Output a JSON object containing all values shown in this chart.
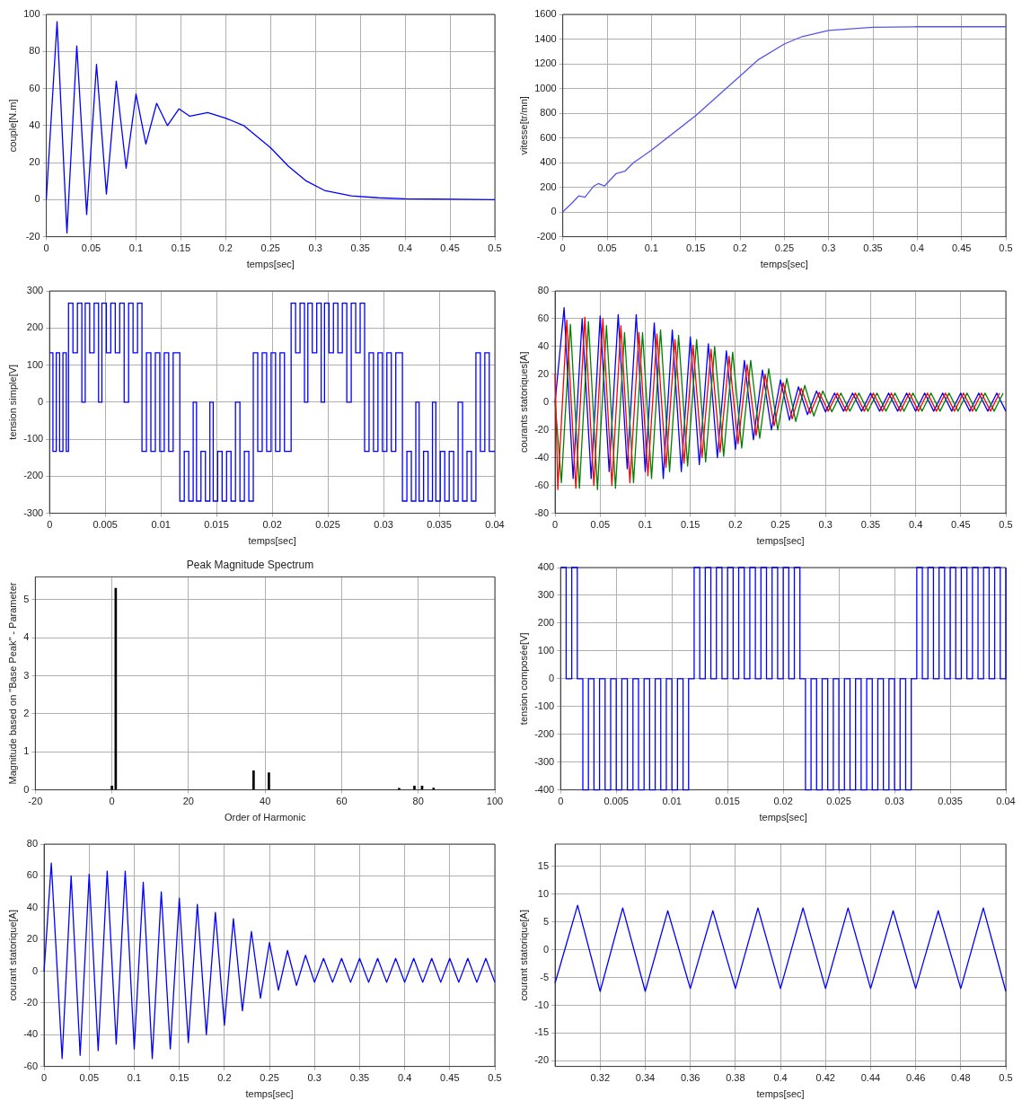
{
  "chart_data": [
    {
      "type": "line",
      "xlabel": "temps[sec]",
      "ylabel": "couple[N.m]",
      "xlim": [
        0,
        0.5
      ],
      "ylim": [
        -20,
        100
      ],
      "xticks": [
        0,
        0.05,
        0.1,
        0.15,
        0.2,
        0.25,
        0.3,
        0.35,
        0.4,
        0.45,
        0.5
      ],
      "yticks": [
        -20,
        0,
        20,
        40,
        60,
        80,
        100
      ],
      "grid": true,
      "color": "#0000ff",
      "x": [
        0,
        0.012,
        0.023,
        0.034,
        0.045,
        0.056,
        0.067,
        0.078,
        0.089,
        0.1,
        0.111,
        0.123,
        0.135,
        0.148,
        0.16,
        0.18,
        0.2,
        0.22,
        0.25,
        0.27,
        0.29,
        0.31,
        0.34,
        0.37,
        0.4,
        0.5
      ],
      "values": [
        0,
        96,
        -18,
        83,
        -8,
        73,
        3,
        64,
        17,
        57,
        30,
        52,
        40,
        49,
        45,
        47,
        44,
        40,
        28,
        18,
        10,
        5,
        2,
        1,
        0.5,
        0
      ]
    },
    {
      "type": "line",
      "xlabel": "temps[sec]",
      "ylabel": "vitesse[tr/mn]",
      "xlim": [
        0,
        0.5
      ],
      "ylim": [
        -200,
        1600
      ],
      "xticks": [
        0,
        0.05,
        0.1,
        0.15,
        0.2,
        0.25,
        0.3,
        0.35,
        0.4,
        0.45,
        0.5
      ],
      "yticks": [
        -200,
        0,
        200,
        400,
        600,
        800,
        1000,
        1200,
        1400,
        1600
      ],
      "grid": true,
      "color": "#5555ee",
      "x": [
        0,
        0.01,
        0.018,
        0.025,
        0.035,
        0.04,
        0.047,
        0.06,
        0.07,
        0.08,
        0.09,
        0.1,
        0.15,
        0.2,
        0.22,
        0.25,
        0.27,
        0.3,
        0.35,
        0.4,
        0.5
      ],
      "values": [
        0,
        70,
        130,
        120,
        210,
        230,
        210,
        310,
        330,
        400,
        450,
        500,
        780,
        1100,
        1230,
        1360,
        1420,
        1470,
        1495,
        1500,
        1500
      ]
    },
    {
      "type": "step",
      "xlabel": "temps[sec]",
      "ylabel": "tension simple[V]",
      "xlim": [
        0,
        0.04
      ],
      "ylim": [
        -300,
        300
      ],
      "xticks": [
        0,
        0.005,
        0.01,
        0.015,
        0.02,
        0.025,
        0.03,
        0.035,
        0.04
      ],
      "yticks": [
        -300,
        -200,
        -100,
        0,
        100,
        200,
        300
      ],
      "grid": true,
      "color": "#0000ff",
      "x": [
        0,
        0.0003,
        0.0006,
        0.0009,
        0.0012,
        0.0015,
        0.0017,
        0.0021,
        0.0025,
        0.0029,
        0.0032,
        0.0036,
        0.004,
        0.0044,
        0.0047,
        0.0051,
        0.0055,
        0.0059,
        0.0063,
        0.0067,
        0.0071,
        0.0075,
        0.0079,
        0.0083,
        0.0087,
        0.0091,
        0.0095,
        0.0099,
        0.0103,
        0.0107,
        0.0111,
        0.0117,
        0.0121,
        0.0125,
        0.0129,
        0.0132,
        0.0136,
        0.014,
        0.0144,
        0.0147,
        0.0151,
        0.0155,
        0.0159,
        0.0163,
        0.0167,
        0.0171,
        0.0175,
        0.0179,
        0.0183,
        0.0187,
        0.0191,
        0.0195,
        0.0199,
        0.0203,
        0.0207,
        0.0211,
        0.0217,
        0.0221,
        0.0225,
        0.0229,
        0.0232,
        0.0236,
        0.024,
        0.0244,
        0.0247,
        0.0251,
        0.0255,
        0.0259,
        0.0263,
        0.0267,
        0.0271,
        0.0275,
        0.0279,
        0.0283,
        0.0287,
        0.0291,
        0.0295,
        0.0299,
        0.0303,
        0.0307,
        0.0311,
        0.0317,
        0.0321,
        0.0325,
        0.0329,
        0.0332,
        0.0336,
        0.034,
        0.0344,
        0.0347,
        0.0351,
        0.0355,
        0.0359,
        0.0363,
        0.0367,
        0.0371,
        0.0375,
        0.0379,
        0.0383,
        0.0387,
        0.0391,
        0.0395,
        0.04
      ],
      "values": [
        133,
        -133,
        133,
        -133,
        133,
        -133,
        267,
        133,
        267,
        0,
        267,
        133,
        267,
        0,
        267,
        133,
        267,
        133,
        267,
        0,
        267,
        133,
        267,
        -133,
        133,
        -133,
        133,
        -133,
        133,
        -133,
        133,
        -267,
        -133,
        -267,
        0,
        -267,
        -133,
        -267,
        0,
        -267,
        -133,
        -267,
        -133,
        -267,
        0,
        -267,
        -133,
        -267,
        133,
        -133,
        133,
        -133,
        133,
        -133,
        133,
        -133,
        267,
        133,
        267,
        0,
        267,
        133,
        267,
        0,
        267,
        133,
        267,
        133,
        267,
        0,
        267,
        133,
        267,
        -133,
        133,
        -133,
        133,
        -133,
        133,
        -133,
        133,
        -267,
        -133,
        -267,
        0,
        -267,
        -133,
        -267,
        0,
        -267,
        -133,
        -267,
        -133,
        -267,
        0,
        -267,
        -133,
        -267,
        133,
        -133,
        133,
        -133,
        -133
      ]
    },
    {
      "type": "line",
      "xlabel": "temps[sec]",
      "ylabel": "courants statoriques[A]",
      "xlim": [
        0,
        0.5
      ],
      "ylim": [
        -80,
        80
      ],
      "xticks": [
        0,
        0.05,
        0.1,
        0.15,
        0.2,
        0.25,
        0.3,
        0.35,
        0.4,
        0.45,
        0.5
      ],
      "yticks": [
        -80,
        -60,
        -40,
        -20,
        0,
        20,
        40,
        60,
        80
      ],
      "grid": true,
      "series": [
        {
          "color": "#ff0000",
          "x": [
            0,
            0.003,
            0.013,
            0.023,
            0.033,
            0.043,
            0.053,
            0.063,
            0.073,
            0.083,
            0.093,
            0.103,
            0.113,
            0.123,
            0.133,
            0.143,
            0.153,
            0.163,
            0.173,
            0.183,
            0.193,
            0.203,
            0.213,
            0.223,
            0.233,
            0.243,
            0.253,
            0.263,
            0.273,
            0.283,
            0.293,
            0.303,
            0.313,
            0.323,
            0.333,
            0.343,
            0.353,
            0.363,
            0.373,
            0.383,
            0.393,
            0.403,
            0.413,
            0.423,
            0.433,
            0.443,
            0.453,
            0.463,
            0.473,
            0.483,
            0.493
          ],
          "values": [
            20,
            -63,
            59,
            -62,
            61,
            -60,
            60,
            -60,
            55,
            -58,
            50,
            -53,
            49,
            -47,
            45,
            -44,
            41,
            -40,
            38,
            -36,
            33,
            -30,
            27,
            -24,
            20,
            -17,
            14,
            -12,
            10,
            -8,
            7,
            -6.5,
            6.5,
            -6.5,
            6.5,
            -6.5,
            6.5,
            -6.5,
            6.5,
            -6.5,
            6.5,
            -6.5,
            6.5,
            -6.5,
            6.5,
            -6.5,
            6.5,
            -6.5,
            6.5,
            -6.5,
            6.5
          ]
        },
        {
          "color": "#008000",
          "x": [
            0,
            0.007,
            0.017,
            0.027,
            0.037,
            0.047,
            0.057,
            0.067,
            0.077,
            0.087,
            0.097,
            0.107,
            0.117,
            0.127,
            0.137,
            0.147,
            0.157,
            0.167,
            0.177,
            0.187,
            0.197,
            0.207,
            0.217,
            0.227,
            0.237,
            0.247,
            0.257,
            0.267,
            0.277,
            0.287,
            0.297,
            0.307,
            0.317,
            0.327,
            0.337,
            0.347,
            0.357,
            0.367,
            0.377,
            0.387,
            0.397,
            0.407,
            0.417,
            0.427,
            0.437,
            0.447,
            0.457,
            0.467,
            0.477,
            0.487,
            0.497
          ],
          "values": [
            0,
            -58,
            56,
            -62,
            58,
            -63,
            55,
            -62,
            50,
            -58,
            50,
            -55,
            52,
            -50,
            48,
            -46,
            45,
            -43,
            40,
            -39,
            36,
            -33,
            30,
            -26,
            24,
            -20,
            17,
            -14,
            12,
            -10,
            8,
            -7,
            6.5,
            -6.5,
            6.5,
            -6.5,
            6.5,
            -6.5,
            6.5,
            -6.5,
            6.5,
            -6.5,
            6.5,
            -6.5,
            6.5,
            -6.5,
            6.5,
            -6.5,
            6.5,
            -6.5,
            6.5
          ]
        },
        {
          "color": "#0000ff",
          "x": [
            0,
            0.01,
            0.02,
            0.03,
            0.04,
            0.05,
            0.06,
            0.07,
            0.08,
            0.09,
            0.1,
            0.11,
            0.12,
            0.13,
            0.14,
            0.15,
            0.16,
            0.17,
            0.18,
            0.19,
            0.2,
            0.21,
            0.22,
            0.23,
            0.24,
            0.25,
            0.26,
            0.27,
            0.28,
            0.29,
            0.3,
            0.31,
            0.32,
            0.33,
            0.34,
            0.35,
            0.36,
            0.37,
            0.38,
            0.39,
            0.4,
            0.41,
            0.42,
            0.43,
            0.44,
            0.45,
            0.46,
            0.47,
            0.48,
            0.49,
            0.5
          ],
          "values": [
            0,
            68,
            -55,
            60,
            -55,
            62,
            -50,
            63,
            -48,
            63,
            -50,
            57,
            -55,
            52,
            -50,
            47,
            -45,
            42,
            -40,
            37,
            -34,
            30,
            -27,
            23,
            -20,
            16,
            -13,
            11,
            -9,
            8,
            -7,
            6.5,
            -6.5,
            6.5,
            -6.5,
            6.5,
            -6.5,
            6.5,
            -6.5,
            6.5,
            -6.5,
            6.5,
            -6.5,
            6.5,
            -6.5,
            6.5,
            -6.5,
            6.5,
            -6.5,
            6.5,
            -6.5
          ]
        }
      ]
    },
    {
      "type": "bar",
      "title": "Peak Magnitude Spectrum",
      "xlabel": "Order of Harmonic",
      "ylabel": "Magnitude based on \"Base Peak\" - Parameter",
      "xlim": [
        -20,
        100
      ],
      "ylim": [
        0,
        5.6
      ],
      "xticks": [
        -20,
        0,
        20,
        40,
        60,
        80,
        100
      ],
      "yticks": [
        0,
        1,
        2,
        3,
        4,
        5
      ],
      "grid": true,
      "color": "#000000",
      "x": [
        0,
        1,
        37,
        41,
        75,
        79,
        81,
        84
      ],
      "values": [
        0.1,
        5.3,
        0.5,
        0.45,
        0.04,
        0.1,
        0.1,
        0.05
      ]
    },
    {
      "type": "step",
      "xlabel": "temps[sec]",
      "ylabel": "tension composée[V]",
      "xlim": [
        0,
        0.04
      ],
      "ylim": [
        -400,
        400
      ],
      "xticks": [
        0,
        0.005,
        0.01,
        0.015,
        0.02,
        0.025,
        0.03,
        0.035,
        0.04
      ],
      "yticks": [
        -400,
        -300,
        -200,
        -100,
        0,
        100,
        200,
        300,
        400
      ],
      "grid": true,
      "color": "#0000ff",
      "x": [
        0,
        0.0005,
        0.001,
        0.0015,
        0.002,
        0.0025,
        0.003,
        0.0035,
        0.004,
        0.0045,
        0.005,
        0.0055,
        0.006,
        0.0065,
        0.007,
        0.0075,
        0.008,
        0.0085,
        0.009,
        0.0095,
        0.01,
        0.0105,
        0.011,
        0.0115,
        0.012,
        0.0125,
        0.013,
        0.0135,
        0.014,
        0.0145,
        0.015,
        0.0155,
        0.016,
        0.0165,
        0.017,
        0.0175,
        0.018,
        0.0185,
        0.019,
        0.0195,
        0.02,
        0.0205,
        0.021,
        0.0215,
        0.022,
        0.0225,
        0.023,
        0.0235,
        0.024,
        0.0245,
        0.025,
        0.0255,
        0.026,
        0.0265,
        0.027,
        0.0275,
        0.028,
        0.0285,
        0.029,
        0.0295,
        0.03,
        0.0305,
        0.031,
        0.0315,
        0.032,
        0.0325,
        0.033,
        0.0335,
        0.034,
        0.0345,
        0.035,
        0.0355,
        0.036,
        0.0365,
        0.037,
        0.0375,
        0.038,
        0.0385,
        0.039,
        0.0395,
        0.04
      ],
      "values": [
        400,
        0,
        400,
        0,
        -400,
        0,
        -400,
        0,
        -400,
        0,
        -400,
        0,
        -400,
        0,
        -400,
        0,
        -400,
        0,
        -400,
        0,
        -400,
        0,
        -400,
        0,
        400,
        0,
        400,
        0,
        400,
        0,
        400,
        0,
        400,
        0,
        400,
        0,
        400,
        0,
        400,
        0,
        400,
        0,
        400,
        0,
        -400,
        0,
        -400,
        0,
        -400,
        0,
        -400,
        0,
        -400,
        0,
        -400,
        0,
        -400,
        0,
        -400,
        0,
        -400,
        0,
        -400,
        0,
        400,
        0,
        400,
        0,
        400,
        0,
        400,
        0,
        400,
        0,
        400,
        0,
        400,
        0,
        400,
        0,
        400
      ]
    },
    {
      "type": "line",
      "xlabel": "temps[sec]",
      "ylabel": "courant statorique[A]",
      "xlim": [
        0,
        0.5
      ],
      "ylim": [
        -60,
        80
      ],
      "xticks": [
        0,
        0.05,
        0.1,
        0.15,
        0.2,
        0.25,
        0.3,
        0.35,
        0.4,
        0.45,
        0.5
      ],
      "yticks": [
        -60,
        -40,
        -20,
        0,
        20,
        40,
        60,
        80
      ],
      "grid": true,
      "color": "#0000ff",
      "x": [
        0,
        0.008,
        0.02,
        0.03,
        0.04,
        0.05,
        0.06,
        0.07,
        0.08,
        0.09,
        0.1,
        0.11,
        0.12,
        0.13,
        0.14,
        0.15,
        0.16,
        0.17,
        0.18,
        0.19,
        0.2,
        0.21,
        0.22,
        0.23,
        0.24,
        0.25,
        0.26,
        0.27,
        0.28,
        0.29,
        0.3,
        0.31,
        0.32,
        0.33,
        0.34,
        0.35,
        0.36,
        0.37,
        0.38,
        0.39,
        0.4,
        0.41,
        0.42,
        0.43,
        0.44,
        0.45,
        0.46,
        0.47,
        0.48,
        0.49,
        0.5
      ],
      "values": [
        0,
        68,
        -55,
        60,
        -53,
        61,
        -50,
        63,
        -46,
        63,
        -49,
        56,
        -55,
        50,
        -49,
        46,
        -45,
        42,
        -40,
        37,
        -34,
        33,
        -25,
        25,
        -17,
        18,
        -12,
        13,
        -9,
        10,
        -7,
        8,
        -7,
        8,
        -7,
        8,
        -7,
        8,
        -7,
        8,
        -7,
        8,
        -7,
        8,
        -7,
        8,
        -7,
        8,
        -7,
        8,
        -7
      ]
    },
    {
      "type": "line",
      "xlabel": "temps[sec]",
      "ylabel": "courant statorique[A]",
      "xlim": [
        0.3,
        0.5
      ],
      "ylim": [
        -21,
        19
      ],
      "xticks": [
        0.32,
        0.34,
        0.36,
        0.38,
        0.4,
        0.42,
        0.44,
        0.46,
        0.48,
        0.5
      ],
      "yticks": [
        -20,
        -15,
        -10,
        -5,
        0,
        5,
        10,
        15
      ],
      "grid": true,
      "color": "#0000ff",
      "x": [
        0.3,
        0.31,
        0.32,
        0.33,
        0.34,
        0.35,
        0.36,
        0.37,
        0.38,
        0.39,
        0.4,
        0.41,
        0.42,
        0.43,
        0.44,
        0.45,
        0.46,
        0.47,
        0.48,
        0.49,
        0.5
      ],
      "values": [
        -6,
        8,
        -7.5,
        7.5,
        -7.5,
        7,
        -7,
        7,
        -7,
        7.5,
        -7,
        7.5,
        -7,
        7.5,
        -7,
        7,
        -7,
        7,
        -7,
        7.5,
        -7.5
      ]
    }
  ]
}
